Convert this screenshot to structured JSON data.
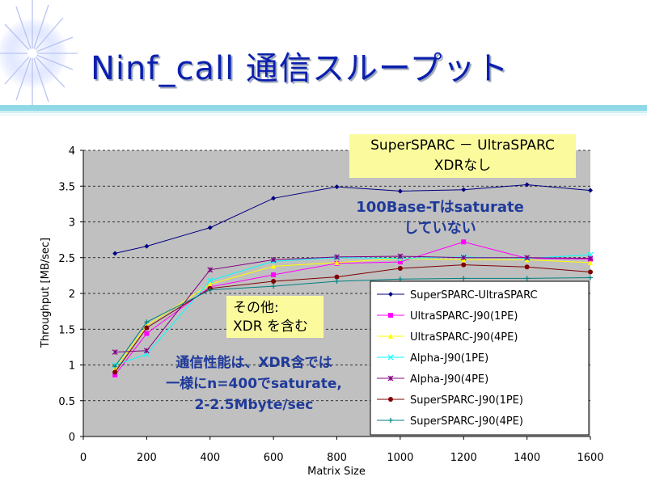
{
  "slide": {
    "title": "Ninf_call 通信スループット"
  },
  "callouts": {
    "sparc_line1": "SuperSPARC － UltraSPARC",
    "sparc_line2": "XDRなし",
    "other_line1": "その他:",
    "other_line2": "XDR を含む"
  },
  "notes": {
    "saturate_line1": "100Base-Tはsaturate",
    "saturate_line2": "していない",
    "perf_line1": "通信性能は、XDR含では",
    "perf_line2": "一様にn=400でsaturate,",
    "perf_line3": "2-2.5Mbyte/sec"
  },
  "chart_data": {
    "type": "line",
    "xlabel": "Matrix Size",
    "ylabel": "Throughput [MB/sec]",
    "xlim": [
      0,
      1600
    ],
    "ylim": [
      0,
      4
    ],
    "x_ticks": [
      0,
      200,
      400,
      600,
      800,
      1000,
      1200,
      1400,
      1600
    ],
    "y_ticks": [
      0,
      0.5,
      1,
      1.5,
      2,
      2.5,
      3,
      3.5,
      4
    ],
    "y_tick_labels": [
      "0",
      "0.5",
      "1",
      "1.5",
      "2",
      "2.5",
      "3",
      "3.5",
      "4"
    ],
    "grid": "horizontal-dashed",
    "legend_position": "bottom-right",
    "x": [
      100,
      200,
      400,
      600,
      800,
      1000,
      1200,
      1400,
      1600
    ],
    "series": [
      {
        "name": "SuperSPARC-UltraSPARC",
        "color": "#000080",
        "marker": "diamond",
        "values": [
          2.56,
          2.66,
          2.92,
          3.33,
          3.49,
          3.43,
          3.45,
          3.52,
          3.44
        ]
      },
      {
        "name": "UltraSPARC-J90(1PE)",
        "color": "#ff00ff",
        "marker": "square",
        "values": [
          0.86,
          1.44,
          2.09,
          2.26,
          2.42,
          2.44,
          2.72,
          2.49,
          2.48
        ]
      },
      {
        "name": "UltraSPARC-J90(4PE)",
        "color": "#ffff00",
        "marker": "triangle",
        "values": [
          0.95,
          1.55,
          2.13,
          2.38,
          2.43,
          2.49,
          2.47,
          2.47,
          2.43
        ]
      },
      {
        "name": "Alpha-J90(1PE)",
        "color": "#00ffff",
        "marker": "x",
        "values": [
          1.0,
          1.15,
          2.18,
          2.45,
          2.5,
          2.49,
          2.51,
          2.49,
          2.54
        ]
      },
      {
        "name": "Alpha-J90(4PE)",
        "color": "#800080",
        "marker": "star",
        "values": [
          1.18,
          1.2,
          2.33,
          2.47,
          2.51,
          2.52,
          2.5,
          2.5,
          2.49
        ]
      },
      {
        "name": "SuperSPARC-J90(1PE)",
        "color": "#800000",
        "marker": "circle",
        "values": [
          0.9,
          1.52,
          2.07,
          2.17,
          2.23,
          2.35,
          2.4,
          2.37,
          2.3
        ]
      },
      {
        "name": "SuperSPARC-J90(4PE)",
        "color": "#008080",
        "marker": "plus",
        "values": [
          0.98,
          1.6,
          2.05,
          2.1,
          2.17,
          2.2,
          2.21,
          2.21,
          2.22
        ]
      }
    ]
  }
}
